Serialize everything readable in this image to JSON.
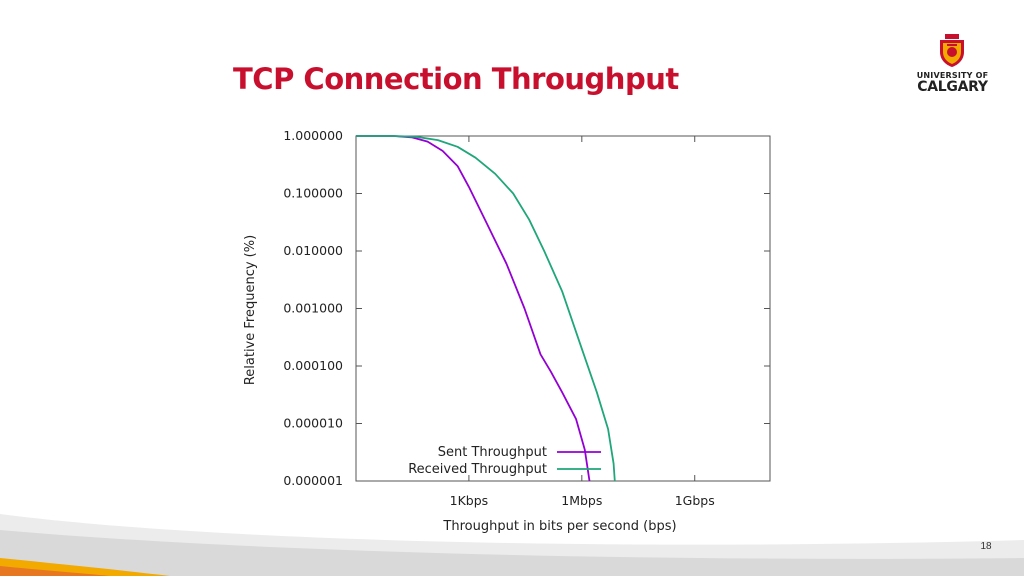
{
  "slide": {
    "title": "TCP Connection Throughput",
    "page_number": "18"
  },
  "logo": {
    "line1": "UNIVERSITY OF",
    "line2": "CALGARY",
    "crest_color": "#c8102e",
    "crest_accent": "#f2a900"
  },
  "chart_data": {
    "type": "line",
    "xlabel": "Throughput in bits per second (bps)",
    "ylabel": "Relative Frequency (%)",
    "x_scale": "log",
    "y_scale": "log",
    "xlim": [
      1,
      100000000000
    ],
    "ylim": [
      1e-06,
      1
    ],
    "x_ticks": [
      {
        "value": 1000,
        "label": "1Kbps"
      },
      {
        "value": 1000000,
        "label": "1Mbps"
      },
      {
        "value": 1000000000,
        "label": "1Gbps"
      }
    ],
    "y_ticks": [
      {
        "value": 1,
        "label": "1.000000"
      },
      {
        "value": 0.1,
        "label": "0.100000"
      },
      {
        "value": 0.01,
        "label": "0.010000"
      },
      {
        "value": 0.001,
        "label": "0.001000"
      },
      {
        "value": 0.0001,
        "label": "0.000100"
      },
      {
        "value": 1e-05,
        "label": "0.000010"
      },
      {
        "value": 1e-06,
        "label": "0.000001"
      }
    ],
    "grid": false,
    "legend_position": "bottom-right",
    "series": [
      {
        "name": "Sent Throughput",
        "color": "#9400d3",
        "points": [
          [
            1,
            1
          ],
          [
            10,
            1
          ],
          [
            30,
            0.95
          ],
          [
            80,
            0.8
          ],
          [
            200,
            0.55
          ],
          [
            500,
            0.3
          ],
          [
            1000,
            0.13
          ],
          [
            3000,
            0.03
          ],
          [
            10000,
            0.006
          ],
          [
            30000,
            0.001
          ],
          [
            80000,
            0.00016
          ],
          [
            150000,
            8e-05
          ],
          [
            300000,
            3.5e-05
          ],
          [
            700000,
            1.2e-05
          ],
          [
            1200000,
            3.5e-06
          ],
          [
            1600000,
            1e-06
          ]
        ]
      },
      {
        "name": "Received Throughput",
        "color": "#1fa67a",
        "points": [
          [
            1,
            1
          ],
          [
            10,
            1
          ],
          [
            40,
            0.97
          ],
          [
            150,
            0.85
          ],
          [
            500,
            0.65
          ],
          [
            1500,
            0.42
          ],
          [
            5000,
            0.22
          ],
          [
            15000,
            0.1
          ],
          [
            40000,
            0.035
          ],
          [
            100000,
            0.01
          ],
          [
            300000,
            0.002
          ],
          [
            1000000,
            0.0002
          ],
          [
            2500000,
            3.5e-05
          ],
          [
            5000000,
            8e-06
          ],
          [
            7000000,
            2e-06
          ],
          [
            7500000,
            1e-06
          ]
        ]
      }
    ]
  }
}
